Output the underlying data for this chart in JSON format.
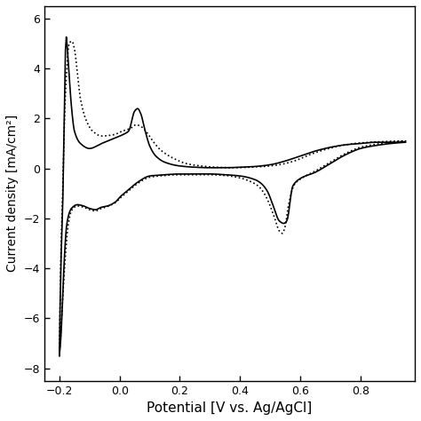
{
  "title": "",
  "xlabel": "Potential [V vs. Ag/AgCl]",
  "ylabel": "Current density [mA/cm²]",
  "xlim": [
    -0.25,
    0.98
  ],
  "ylim": [
    -8.5,
    6.5
  ],
  "xticks": [
    -0.2,
    0.0,
    0.2,
    0.4,
    0.6,
    0.8
  ],
  "yticks": [
    -8,
    -6,
    -4,
    -2,
    0,
    2,
    4,
    6
  ],
  "background_color": "#ffffff",
  "line_color": "#000000",
  "figsize": [
    4.74,
    4.74
  ],
  "dpi": 100
}
